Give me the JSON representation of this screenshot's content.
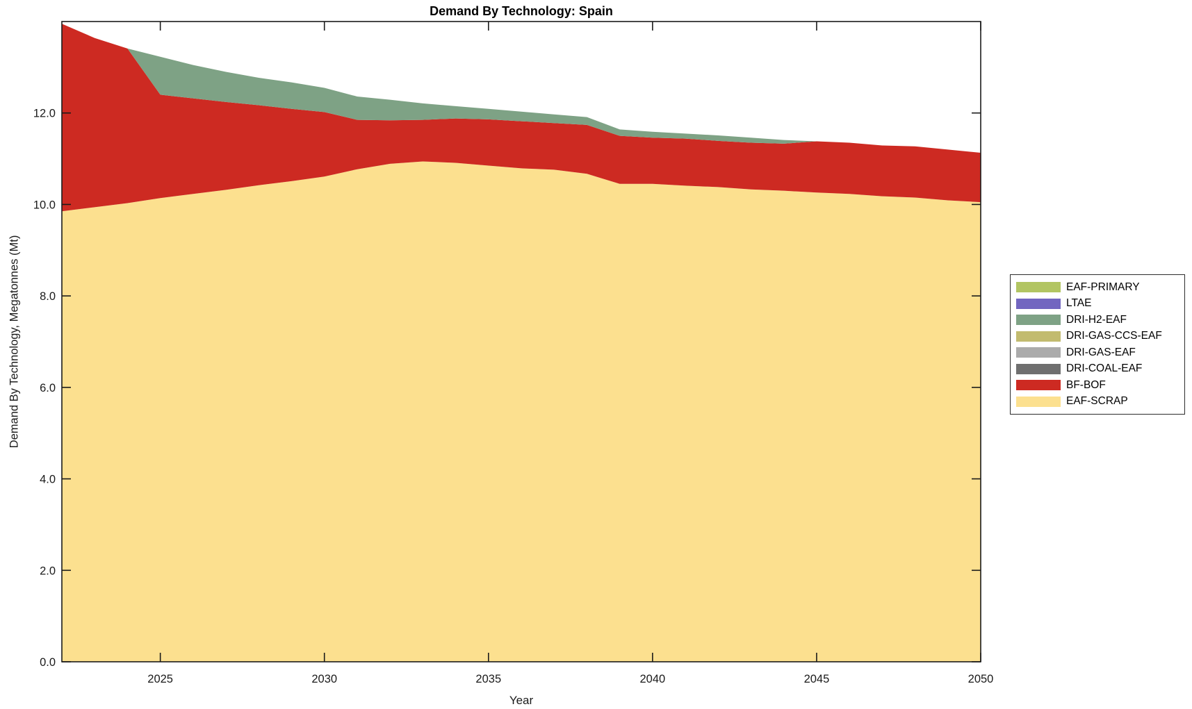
{
  "figure": {
    "title": "Demand By Technology: Spain",
    "xlabel": "Year",
    "ylabel": "Demand By Technology, Megatonnes (Mt)"
  },
  "colors": {
    "axis": "#1a1a1a",
    "background": "#ffffff",
    "legend_border": "#2b2b2b"
  },
  "chart_data": {
    "type": "area",
    "stacked": true,
    "title": "Demand By Technology: Spain",
    "xlabel": "Year",
    "ylabel": "Demand By Technology, Megatonnes (Mt)",
    "grid": false,
    "legend_position": "outside-right",
    "xlim": [
      2022,
      2050
    ],
    "ylim": [
      0,
      14.0
    ],
    "x_ticks": [
      2025,
      2030,
      2035,
      2040,
      2045,
      2050
    ],
    "x_tick_labels": [
      "2025",
      "2030",
      "2035",
      "2040",
      "2045",
      "2050"
    ],
    "y_ticks": [
      0,
      2,
      4,
      6,
      8,
      10,
      12
    ],
    "y_tick_labels": [
      "0.0",
      "2.0",
      "4.0",
      "6.0",
      "8.0",
      "10.0",
      "12.0"
    ],
    "x": [
      2022,
      2023,
      2024,
      2025,
      2026,
      2027,
      2028,
      2029,
      2030,
      2031,
      2032,
      2033,
      2034,
      2035,
      2036,
      2037,
      2038,
      2039,
      2040,
      2041,
      2042,
      2043,
      2044,
      2045,
      2046,
      2047,
      2048,
      2049,
      2050
    ],
    "series": [
      {
        "name": "EAF-SCRAP",
        "color": "#FCE08F",
        "values": [
          9.85,
          9.94,
          10.03,
          10.14,
          10.23,
          10.32,
          10.42,
          10.51,
          10.61,
          10.77,
          10.89,
          10.94,
          10.91,
          10.85,
          10.79,
          10.76,
          10.67,
          10.45,
          10.45,
          10.41,
          10.38,
          10.33,
          10.3,
          10.26,
          10.23,
          10.18,
          10.15,
          10.09,
          10.05
        ]
      },
      {
        "name": "BF-BOF",
        "color": "#CD2A22",
        "values": [
          4.1,
          3.7,
          3.38,
          2.26,
          2.09,
          1.92,
          1.75,
          1.58,
          1.41,
          1.08,
          0.95,
          0.91,
          0.97,
          1.01,
          1.03,
          1.02,
          1.07,
          1.05,
          1.01,
          1.03,
          1.01,
          1.02,
          1.03,
          1.12,
          1.12,
          1.11,
          1.12,
          1.11,
          1.08
        ]
      },
      {
        "name": "DRI-COAL-EAF",
        "color": "#6F6F6F",
        "values": [
          0,
          0,
          0,
          0,
          0,
          0,
          0,
          0,
          0,
          0,
          0,
          0,
          0,
          0,
          0,
          0,
          0,
          0,
          0,
          0,
          0,
          0,
          0,
          0,
          0,
          0,
          0,
          0,
          0
        ]
      },
      {
        "name": "DRI-GAS-EAF",
        "color": "#ABABAB",
        "values": [
          0,
          0,
          0,
          0,
          0,
          0,
          0,
          0,
          0,
          0,
          0,
          0,
          0,
          0,
          0,
          0,
          0,
          0,
          0,
          0,
          0,
          0,
          0,
          0,
          0,
          0,
          0,
          0,
          0
        ]
      },
      {
        "name": "DRI-GAS-CCS-EAF",
        "color": "#C2BB6F",
        "values": [
          0,
          0,
          0,
          0,
          0,
          0,
          0,
          0,
          0,
          0,
          0,
          0,
          0,
          0,
          0,
          0,
          0,
          0,
          0,
          0,
          0,
          0,
          0,
          0,
          0,
          0,
          0,
          0,
          0
        ]
      },
      {
        "name": "DRI-H2-EAF",
        "color": "#7EA285",
        "values": [
          0,
          0,
          0,
          0.83,
          0.73,
          0.66,
          0.6,
          0.58,
          0.53,
          0.51,
          0.45,
          0.36,
          0.27,
          0.23,
          0.21,
          0.19,
          0.17,
          0.14,
          0.13,
          0.11,
          0.12,
          0.11,
          0.08,
          0,
          0,
          0,
          0,
          0,
          0
        ]
      },
      {
        "name": "LTAE",
        "color": "#7266C0",
        "values": [
          0,
          0,
          0,
          0,
          0,
          0,
          0,
          0,
          0,
          0,
          0,
          0,
          0,
          0,
          0,
          0,
          0,
          0,
          0,
          0,
          0,
          0,
          0,
          0,
          0,
          0,
          0,
          0,
          0
        ]
      },
      {
        "name": "EAF-PRIMARY",
        "color": "#B2C562",
        "values": [
          0,
          0,
          0,
          0,
          0,
          0,
          0,
          0,
          0,
          0,
          0,
          0,
          0,
          0,
          0,
          0,
          0,
          0,
          0,
          0,
          0,
          0,
          0,
          0,
          0,
          0,
          0,
          0,
          0
        ]
      }
    ],
    "legend_order_top_to_bottom": [
      "EAF-PRIMARY",
      "LTAE",
      "DRI-H2-EAF",
      "DRI-GAS-CCS-EAF",
      "DRI-GAS-EAF",
      "DRI-COAL-EAF",
      "BF-BOF",
      "EAF-SCRAP"
    ]
  }
}
